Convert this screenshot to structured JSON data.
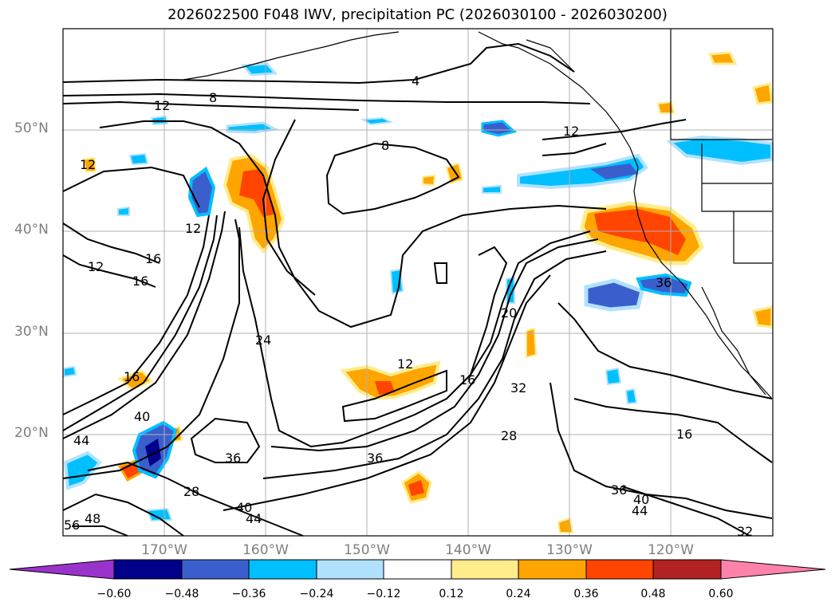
{
  "title": "2026022500 F048 IWV, precipitation PC (2026030100 - 2026030200)",
  "latitudes": [
    "50°N",
    "40°N",
    "30°N",
    "20°N"
  ],
  "longitudes": [
    "170°W",
    "160°W",
    "150°W",
    "140°W",
    "130°W",
    "120°W"
  ],
  "contour_labels": [
    "4",
    "8",
    "12",
    "8",
    "12",
    "12",
    "12",
    "16",
    "16",
    "12",
    "24",
    "12",
    "16",
    "20",
    "32",
    "16",
    "40",
    "44",
    "36",
    "28",
    "36",
    "28",
    "40",
    "44",
    "56",
    "48",
    "36",
    "40",
    "44",
    "32",
    "16",
    "36"
  ],
  "colorbar": {
    "ticks": [
      "−0.60",
      "−0.48",
      "−0.36",
      "−0.24",
      "−0.12",
      "0.12",
      "0.24",
      "0.36",
      "0.48",
      "0.60"
    ],
    "colors": [
      "#9a33cc",
      "#00008b",
      "#3a5fcd",
      "#00bfff",
      "#b0e2ff",
      "#ffffff",
      "#ffec8b",
      "#ffa500",
      "#ff4500",
      "#b22222",
      "#ff82ab"
    ]
  }
}
